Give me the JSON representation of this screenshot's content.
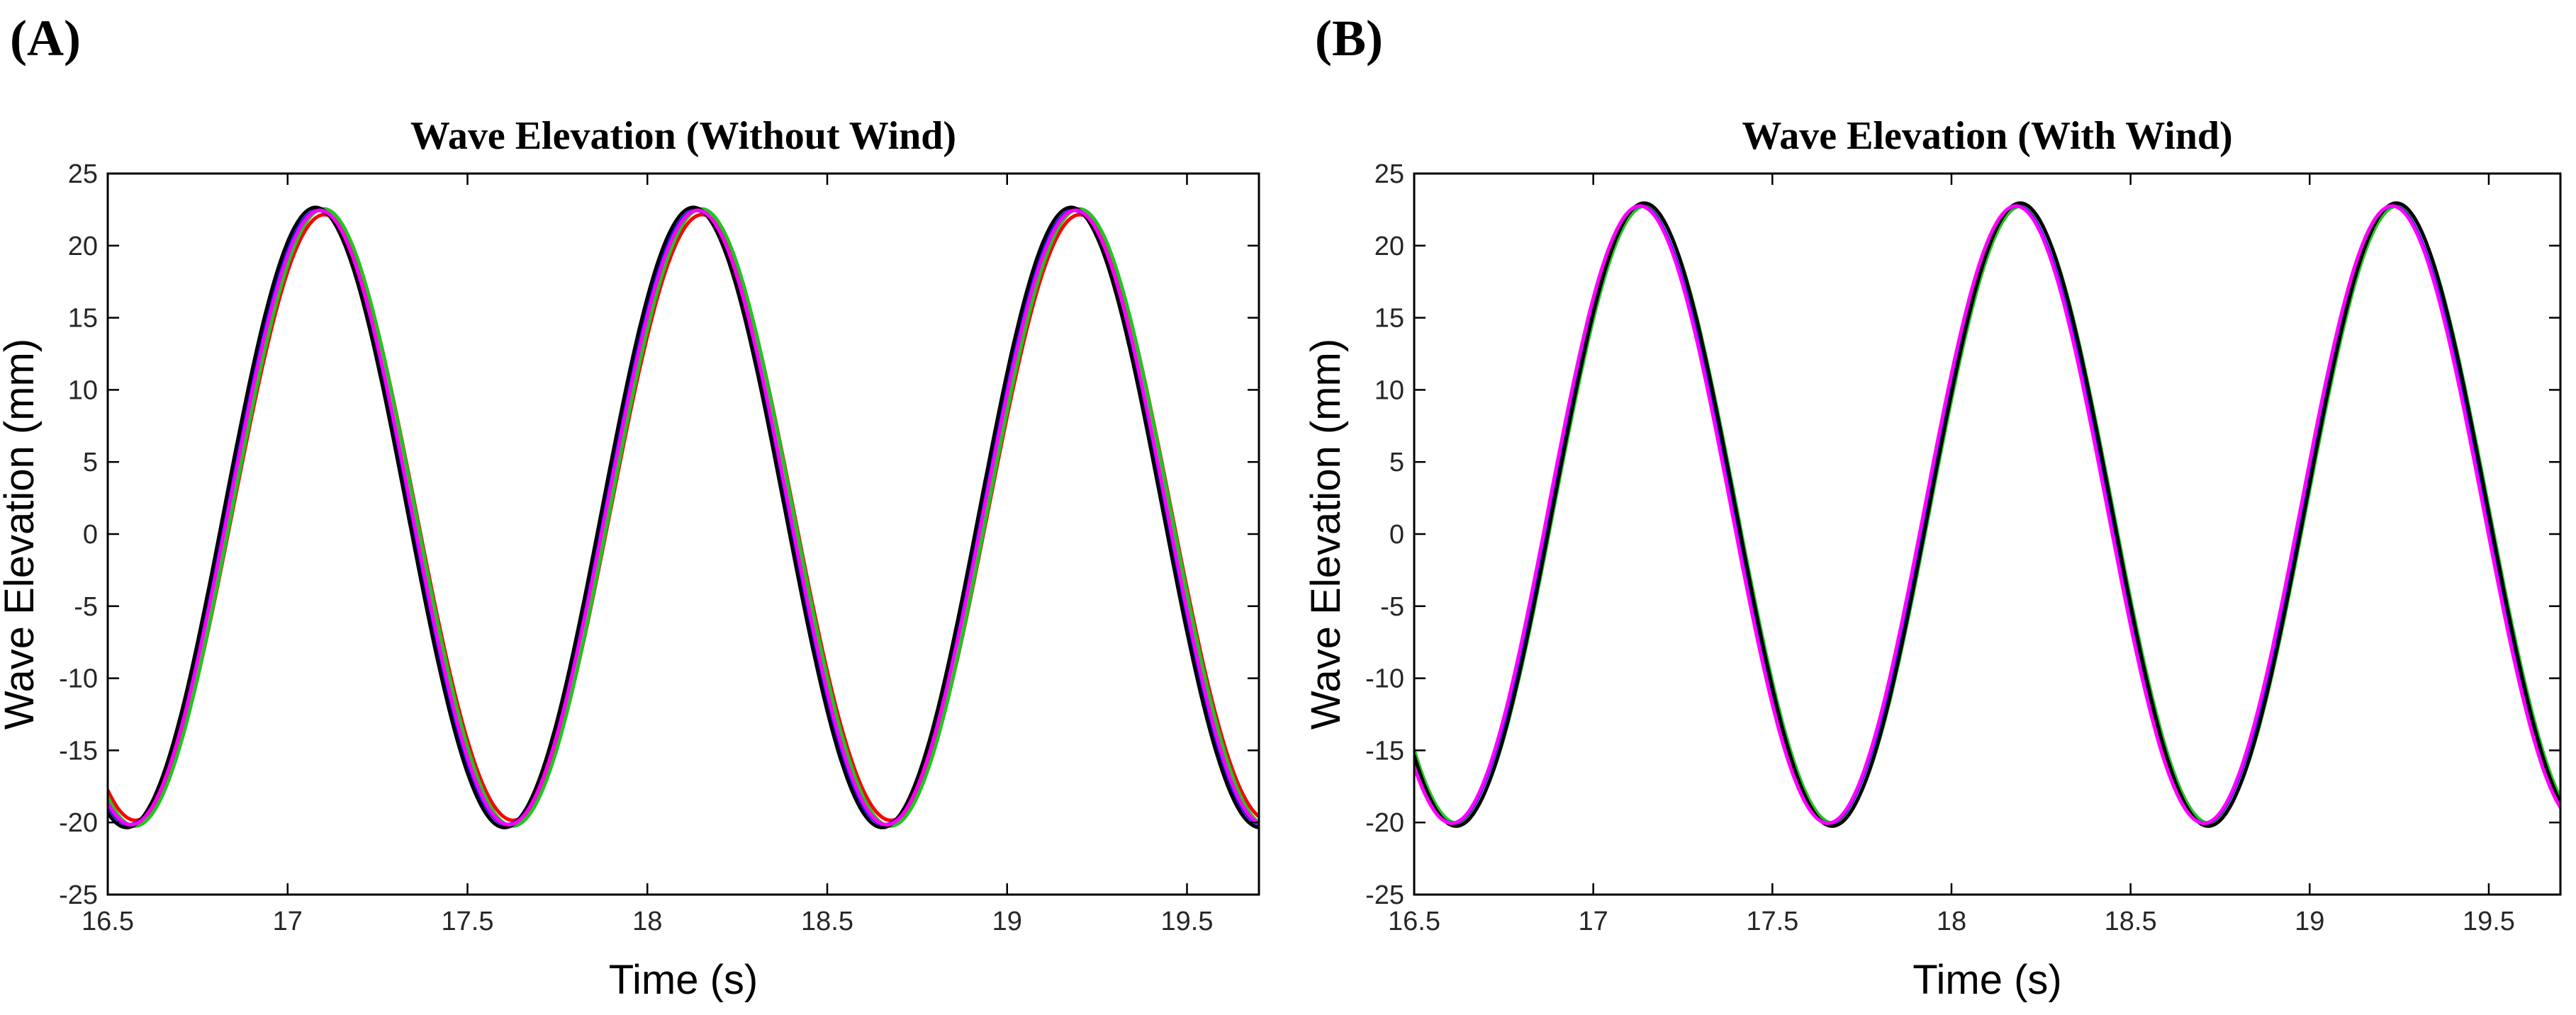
{
  "chart_data": [
    {
      "panel_label": "(A)",
      "type": "line",
      "title": "Wave Elevation (Without Wind)",
      "xlabel": "Time (s)",
      "ylabel": "Wave Elevation (mm)",
      "xlim": [
        16.5,
        19.7
      ],
      "ylim": [
        -25,
        25
      ],
      "xticks": [
        16.5,
        17,
        17.5,
        18,
        18.5,
        19,
        19.5
      ],
      "xtick_labels": [
        "16.5",
        "17",
        "17.5",
        "18",
        "18.5",
        "19",
        "19.5"
      ],
      "yticks": [
        -25,
        -20,
        -15,
        -10,
        -5,
        0,
        5,
        10,
        15,
        20,
        25
      ],
      "ytick_labels": [
        "-25",
        "-20",
        "-15",
        "-10",
        "-5",
        "0",
        "5",
        "10",
        "15",
        "20",
        "25"
      ],
      "grid": false,
      "legend": "none",
      "wave": {
        "period_s": 1.05,
        "first_crest_s": 17.09,
        "amplitude_mm": 21.3,
        "offset_mm": 0.9
      },
      "series": [
        {
          "name": "red",
          "color": "#ff0000",
          "time_shift_s": 0.012,
          "amplitude_delta_mm": -0.3
        },
        {
          "name": "green",
          "color": "#22c422",
          "time_shift_s": 0.01,
          "amplitude_delta_mm": 0.1
        },
        {
          "name": "blue",
          "color": "#1a1aff",
          "time_shift_s": -0.005,
          "amplitude_delta_mm": 0.0
        },
        {
          "name": "black",
          "color": "#000000",
          "time_shift_s": -0.012,
          "amplitude_delta_mm": 0.2
        },
        {
          "name": "magenta",
          "color": "#ff00ff",
          "time_shift_s": 0.0,
          "amplitude_delta_mm": 0.0
        }
      ]
    },
    {
      "panel_label": "(B)",
      "type": "line",
      "title": "Wave Elevation (With Wind)",
      "xlabel": "Time (s)",
      "ylabel": "Wave Elevation (mm)",
      "xlim": [
        16.5,
        19.7
      ],
      "ylim": [
        -25,
        25
      ],
      "xticks": [
        16.5,
        17,
        17.5,
        18,
        18.5,
        19,
        19.5
      ],
      "xtick_labels": [
        "16.5",
        "17",
        "17.5",
        "18",
        "18.5",
        "19",
        "19.5"
      ],
      "yticks": [
        -25,
        -20,
        -15,
        -10,
        -5,
        0,
        5,
        10,
        15,
        20,
        25
      ],
      "ytick_labels": [
        "-25",
        "-20",
        "-15",
        "-10",
        "-5",
        "0",
        "5",
        "10",
        "15",
        "20",
        "25"
      ],
      "grid": false,
      "legend": "none",
      "wave": {
        "period_s": 1.05,
        "first_crest_s": 17.13,
        "amplitude_mm": 21.4,
        "offset_mm": 1.1
      },
      "series": [
        {
          "name": "green",
          "color": "#22c422",
          "time_shift_s": 0.015,
          "amplitude_delta_mm": 0.0
        },
        {
          "name": "blue",
          "color": "#1a1aff",
          "time_shift_s": 0.003,
          "amplitude_delta_mm": 0.0
        },
        {
          "name": "black",
          "color": "#000000",
          "time_shift_s": 0.012,
          "amplitude_delta_mm": 0.2
        },
        {
          "name": "magenta",
          "color": "#ff00ff",
          "time_shift_s": 0.0,
          "amplitude_delta_mm": 0.0
        }
      ]
    }
  ]
}
